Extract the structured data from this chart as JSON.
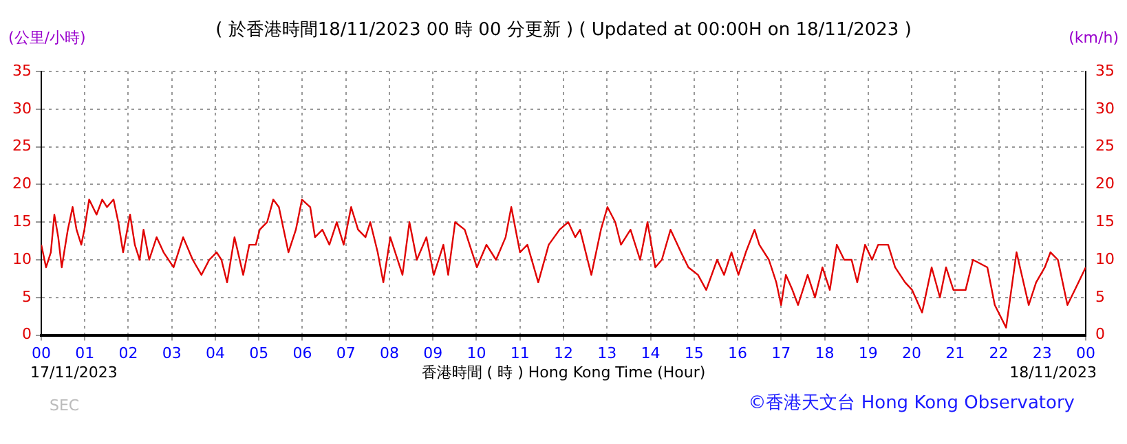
{
  "chart_data": {
    "type": "line",
    "title": "( 於香港時間18/11/2023 00 時 00 分更新 ) ( Updated at 00:00H on 18/11/2023 )",
    "xlabel": "香港時間 ( 時 ) Hong Kong Time (Hour)",
    "ylabel": "(公里/小時)",
    "y2label": "(km/h)",
    "annotations": [
      "17/11/2023",
      "18/11/2023",
      "SEC",
      "©香港天文台 Hong Kong Observatory"
    ],
    "x": [
      0,
      0.11,
      0.22,
      0.3,
      0.39,
      0.47,
      0.61,
      0.72,
      0.81,
      0.92,
      0.99,
      1.1,
      1.27,
      1.4,
      1.51,
      1.66,
      1.77,
      1.88,
      2.04,
      2.15,
      2.26,
      2.35,
      2.48,
      2.65,
      2.81,
      3.04,
      3.26,
      3.48,
      3.68,
      3.86,
      4.03,
      4.14,
      4.27,
      4.44,
      4.64,
      4.78,
      4.93,
      5.02,
      5.19,
      5.33,
      5.46,
      5.57,
      5.68,
      5.85,
      5.99,
      6.18,
      6.29,
      6.46,
      6.62,
      6.79,
      6.95,
      7.12,
      7.28,
      7.45,
      7.56,
      7.73,
      7.86,
      8.02,
      8.3,
      8.46,
      8.63,
      8.85,
      9.02,
      9.24,
      9.35,
      9.51,
      9.73,
      10.01,
      10.23,
      10.45,
      10.67,
      10.8,
      11.0,
      11.17,
      11.42,
      11.66,
      11.91,
      12.11,
      12.27,
      12.38,
      12.64,
      12.86,
      13.01,
      13.19,
      13.32,
      13.54,
      13.76,
      13.93,
      14.11,
      14.26,
      14.46,
      14.7,
      14.87,
      15.09,
      15.28,
      15.53,
      15.69,
      15.86,
      16.02,
      16.19,
      16.39,
      16.5,
      16.72,
      16.89,
      17.0,
      17.11,
      17.26,
      17.39,
      17.61,
      17.78,
      17.95,
      18.12,
      18.28,
      18.45,
      18.62,
      18.75,
      18.93,
      19.09,
      19.23,
      19.46,
      19.62,
      19.85,
      20.01,
      20.24,
      20.46,
      20.65,
      20.79,
      20.96,
      21.24,
      21.41,
      21.74,
      21.91,
      22.17,
      22.41,
      22.69,
      22.86,
      23.06,
      23.19,
      23.36,
      23.58,
      23.75,
      24.0
    ],
    "series": [
      {
        "color": "#e00000",
        "values": [
          12,
          9,
          11,
          16,
          13,
          9,
          14,
          17,
          14,
          12,
          14,
          18,
          16,
          18,
          17,
          18,
          15,
          11,
          16,
          12,
          10,
          14,
          10,
          13,
          11,
          9,
          13,
          10,
          8,
          10,
          11,
          10,
          7,
          13,
          8,
          12,
          12,
          14,
          15,
          18,
          17,
          14,
          11,
          14,
          18,
          17,
          13,
          14,
          12,
          15,
          12,
          17,
          14,
          13,
          15,
          11,
          7,
          13,
          8,
          15,
          10,
          13,
          8,
          12,
          8,
          15,
          14,
          9,
          12,
          10,
          13,
          17,
          11,
          12,
          7,
          12,
          14,
          15,
          13,
          14,
          8,
          14,
          17,
          15,
          12,
          14,
          10,
          15,
          9,
          10,
          14,
          11,
          9,
          8,
          6,
          10,
          8,
          11,
          8,
          11,
          14,
          12,
          10,
          7,
          4,
          8,
          6,
          4,
          8,
          5,
          9,
          6,
          12,
          10,
          10,
          7,
          12,
          10,
          12,
          12,
          9,
          7,
          6,
          3,
          9,
          5,
          9,
          6,
          6,
          10,
          9,
          4,
          1,
          11,
          4,
          7,
          9,
          11,
          10,
          4,
          6,
          9
        ]
      }
    ],
    "xlim": [
      0,
      24
    ],
    "xticks": [
      {
        "value": 0,
        "label": "00"
      },
      {
        "value": 1,
        "label": "01"
      },
      {
        "value": 2,
        "label": "02"
      },
      {
        "value": 3,
        "label": "03"
      },
      {
        "value": 4,
        "label": "04"
      },
      {
        "value": 5,
        "label": "05"
      },
      {
        "value": 6,
        "label": "06"
      },
      {
        "value": 7,
        "label": "07"
      },
      {
        "value": 8,
        "label": "08"
      },
      {
        "value": 9,
        "label": "09"
      },
      {
        "value": 10,
        "label": "10"
      },
      {
        "value": 11,
        "label": "11"
      },
      {
        "value": 12,
        "label": "12"
      },
      {
        "value": 13,
        "label": "13"
      },
      {
        "value": 14,
        "label": "14"
      },
      {
        "value": 15,
        "label": "15"
      },
      {
        "value": 16,
        "label": "16"
      },
      {
        "value": 17,
        "label": "17"
      },
      {
        "value": 18,
        "label": "18"
      },
      {
        "value": 19,
        "label": "19"
      },
      {
        "value": 20,
        "label": "20"
      },
      {
        "value": 21,
        "label": "21"
      },
      {
        "value": 22,
        "label": "22"
      },
      {
        "value": 23,
        "label": "23"
      },
      {
        "value": 24,
        "label": "00"
      }
    ],
    "ylim": [
      0,
      35
    ],
    "yticks": [
      0,
      5,
      10,
      15,
      20,
      25,
      30,
      35
    ],
    "y2lim": [
      0,
      35
    ],
    "y2ticks": [
      0,
      5,
      10,
      15,
      20,
      25,
      30,
      35
    ],
    "grid": true,
    "marker": "none",
    "line_style": "solid"
  }
}
